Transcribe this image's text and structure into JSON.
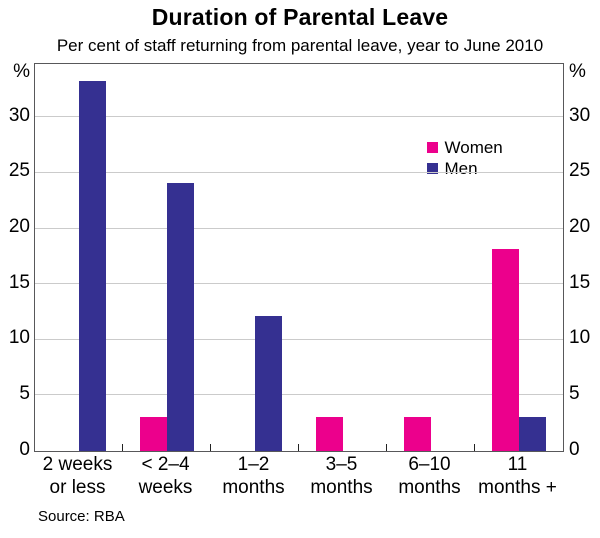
{
  "header": {
    "title": "Duration of Parental Leave",
    "subtitle": "Per cent of staff returning from parental leave, year to June 2010"
  },
  "source": "Source: RBA",
  "colors": {
    "women": "#EC008C",
    "men": "#353091",
    "grid": "#cbcbcb",
    "frame": "#58585a",
    "text": "#000000"
  },
  "chart_data": {
    "type": "bar",
    "title": "Duration of Parental Leave",
    "subtitle": "Per cent of staff returning from parental leave, year to June 2010",
    "categories": [
      "2 weeks\nor less",
      "< 2–4\nweeks",
      "1–2\nmonths",
      "3–5\nmonths",
      "6–10\nmonths",
      "11\nmonths +"
    ],
    "series": [
      {
        "name": "Women",
        "color": "#EC008C",
        "values": [
          0,
          3.0,
          0,
          3.0,
          3.0,
          18.1
        ]
      },
      {
        "name": "Men",
        "color": "#353091",
        "values": [
          33.2,
          24.1,
          12.1,
          0,
          0,
          3.0
        ]
      }
    ],
    "ylabel_symbol": "%",
    "yticks": [
      0,
      5,
      10,
      15,
      20,
      25,
      30
    ],
    "ylim": [
      0,
      34.8
    ],
    "grid": true,
    "legend_position": "top-right-inside",
    "axis_sides": [
      "left",
      "right"
    ]
  }
}
